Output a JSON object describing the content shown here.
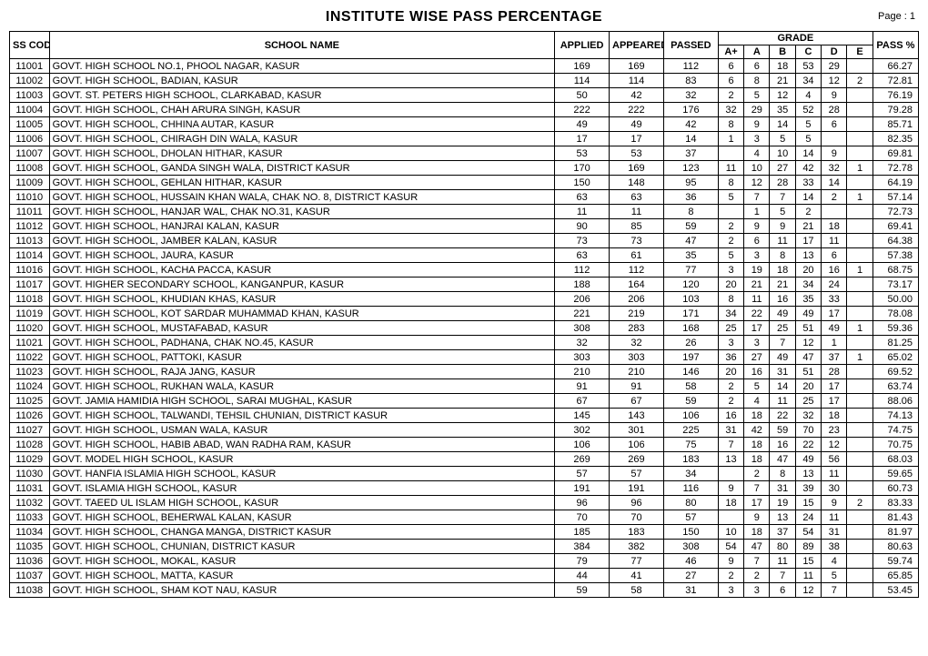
{
  "title": "INSTITUTE WISE PASS PERCENTAGE",
  "page_label": "Page : 1",
  "headers": {
    "ss_code": "SS CODE",
    "school_name": "SCHOOL NAME",
    "applied": "APPLIED",
    "appeared": "APPEARED",
    "passed": "PASSED",
    "grade": "GRADE",
    "grade_cols": [
      "A+",
      "A",
      "B",
      "C",
      "D",
      "E"
    ],
    "pass_pct": "PASS %"
  },
  "rows": [
    {
      "code": "11001",
      "name": "GOVT. HIGH SCHOOL NO.1, PHOOL NAGAR, KASUR",
      "applied": "169",
      "appeared": "169",
      "passed": "112",
      "Ap": "6",
      "A": "6",
      "B": "18",
      "C": "53",
      "D": "29",
      "E": "",
      "pass": "66.27"
    },
    {
      "code": "11002",
      "name": "GOVT. HIGH SCHOOL, BADIAN, KASUR",
      "applied": "114",
      "appeared": "114",
      "passed": "83",
      "Ap": "6",
      "A": "8",
      "B": "21",
      "C": "34",
      "D": "12",
      "E": "2",
      "pass": "72.81"
    },
    {
      "code": "11003",
      "name": "GOVT. ST. PETERS HIGH SCHOOL,  CLARKABAD, KASUR",
      "applied": "50",
      "appeared": "42",
      "passed": "32",
      "Ap": "2",
      "A": "5",
      "B": "12",
      "C": "4",
      "D": "9",
      "E": "",
      "pass": "76.19"
    },
    {
      "code": "11004",
      "name": "GOVT. HIGH SCHOOL, CHAH ARURA SINGH, KASUR",
      "applied": "222",
      "appeared": "222",
      "passed": "176",
      "Ap": "32",
      "A": "29",
      "B": "35",
      "C": "52",
      "D": "28",
      "E": "",
      "pass": "79.28"
    },
    {
      "code": "11005",
      "name": "GOVT. HIGH SCHOOL, CHHINA AUTAR, KASUR",
      "applied": "49",
      "appeared": "49",
      "passed": "42",
      "Ap": "8",
      "A": "9",
      "B": "14",
      "C": "5",
      "D": "6",
      "E": "",
      "pass": "85.71"
    },
    {
      "code": "11006",
      "name": "GOVT. HIGH SCHOOL, CHIRAGH DIN WALA, KASUR",
      "applied": "17",
      "appeared": "17",
      "passed": "14",
      "Ap": "1",
      "A": "3",
      "B": "5",
      "C": "5",
      "D": "",
      "E": "",
      "pass": "82.35"
    },
    {
      "code": "11007",
      "name": "GOVT. HIGH SCHOOL,  DHOLAN HITHAR, KASUR",
      "applied": "53",
      "appeared": "53",
      "passed": "37",
      "Ap": "",
      "A": "4",
      "B": "10",
      "C": "14",
      "D": "9",
      "E": "",
      "pass": "69.81"
    },
    {
      "code": "11008",
      "name": "GOVT. HIGH SCHOOL, GANDA SINGH WALA, DISTRICT KASUR",
      "applied": "170",
      "appeared": "169",
      "passed": "123",
      "Ap": "11",
      "A": "10",
      "B": "27",
      "C": "42",
      "D": "32",
      "E": "1",
      "pass": "72.78"
    },
    {
      "code": "11009",
      "name": "GOVT. HIGH SCHOOL, GEHLAN HITHAR, KASUR",
      "applied": "150",
      "appeared": "148",
      "passed": "95",
      "Ap": "8",
      "A": "12",
      "B": "28",
      "C": "33",
      "D": "14",
      "E": "",
      "pass": "64.19"
    },
    {
      "code": "11010",
      "name": "GOVT. HIGH SCHOOL, HUSSAIN KHAN WALA, CHAK NO. 8, DISTRICT KASUR",
      "applied": "63",
      "appeared": "63",
      "passed": "36",
      "Ap": "5",
      "A": "7",
      "B": "7",
      "C": "14",
      "D": "2",
      "E": "1",
      "pass": "57.14"
    },
    {
      "code": "11011",
      "name": "GOVT. HIGH SCHOOL, HANJAR WAL, CHAK NO.31, KASUR",
      "applied": "11",
      "appeared": "11",
      "passed": "8",
      "Ap": "",
      "A": "1",
      "B": "5",
      "C": "2",
      "D": "",
      "E": "",
      "pass": "72.73"
    },
    {
      "code": "11012",
      "name": "GOVT. HIGH SCHOOL, HANJRAI KALAN, KASUR",
      "applied": "90",
      "appeared": "85",
      "passed": "59",
      "Ap": "2",
      "A": "9",
      "B": "9",
      "C": "21",
      "D": "18",
      "E": "",
      "pass": "69.41"
    },
    {
      "code": "11013",
      "name": "GOVT. HIGH SCHOOL, JAMBER KALAN, KASUR",
      "applied": "73",
      "appeared": "73",
      "passed": "47",
      "Ap": "2",
      "A": "6",
      "B": "11",
      "C": "17",
      "D": "11",
      "E": "",
      "pass": "64.38"
    },
    {
      "code": "11014",
      "name": "GOVT. HIGH SCHOOL, JAURA, KASUR",
      "applied": "63",
      "appeared": "61",
      "passed": "35",
      "Ap": "5",
      "A": "3",
      "B": "8",
      "C": "13",
      "D": "6",
      "E": "",
      "pass": "57.38"
    },
    {
      "code": "11016",
      "name": "GOVT. HIGH SCHOOL, KACHA PACCA, KASUR",
      "applied": "112",
      "appeared": "112",
      "passed": "77",
      "Ap": "3",
      "A": "19",
      "B": "18",
      "C": "20",
      "D": "16",
      "E": "1",
      "pass": "68.75"
    },
    {
      "code": "11017",
      "name": "GOVT. HIGHER SECONDARY SCHOOL, KANGANPUR, KASUR",
      "applied": "188",
      "appeared": "164",
      "passed": "120",
      "Ap": "20",
      "A": "21",
      "B": "21",
      "C": "34",
      "D": "24",
      "E": "",
      "pass": "73.17"
    },
    {
      "code": "11018",
      "name": "GOVT. HIGH SCHOOL, KHUDIAN KHAS, KASUR",
      "applied": "206",
      "appeared": "206",
      "passed": "103",
      "Ap": "8",
      "A": "11",
      "B": "16",
      "C": "35",
      "D": "33",
      "E": "",
      "pass": "50.00"
    },
    {
      "code": "11019",
      "name": "GOVT. HIGH SCHOOL, KOT SARDAR MUHAMMAD KHAN, KASUR",
      "applied": "221",
      "appeared": "219",
      "passed": "171",
      "Ap": "34",
      "A": "22",
      "B": "49",
      "C": "49",
      "D": "17",
      "E": "",
      "pass": "78.08"
    },
    {
      "code": "11020",
      "name": "GOVT. HIGH SCHOOL, MUSTAFABAD, KASUR",
      "applied": "308",
      "appeared": "283",
      "passed": "168",
      "Ap": "25",
      "A": "17",
      "B": "25",
      "C": "51",
      "D": "49",
      "E": "1",
      "pass": "59.36"
    },
    {
      "code": "11021",
      "name": "GOVT. HIGH SCHOOL, PADHANA, CHAK NO.45, KASUR",
      "applied": "32",
      "appeared": "32",
      "passed": "26",
      "Ap": "3",
      "A": "3",
      "B": "7",
      "C": "12",
      "D": "1",
      "E": "",
      "pass": "81.25"
    },
    {
      "code": "11022",
      "name": "GOVT. HIGH SCHOOL, PATTOKI, KASUR",
      "applied": "303",
      "appeared": "303",
      "passed": "197",
      "Ap": "36",
      "A": "27",
      "B": "49",
      "C": "47",
      "D": "37",
      "E": "1",
      "pass": "65.02"
    },
    {
      "code": "11023",
      "name": "GOVT. HIGH SCHOOL, RAJA JANG, KASUR",
      "applied": "210",
      "appeared": "210",
      "passed": "146",
      "Ap": "20",
      "A": "16",
      "B": "31",
      "C": "51",
      "D": "28",
      "E": "",
      "pass": "69.52"
    },
    {
      "code": "11024",
      "name": "GOVT. HIGH SCHOOL, RUKHAN WALA, KASUR",
      "applied": "91",
      "appeared": "91",
      "passed": "58",
      "Ap": "2",
      "A": "5",
      "B": "14",
      "C": "20",
      "D": "17",
      "E": "",
      "pass": "63.74"
    },
    {
      "code": "11025",
      "name": "GOVT. JAMIA HAMIDIA HIGH SCHOOL, SARAI MUGHAL, KASUR",
      "applied": "67",
      "appeared": "67",
      "passed": "59",
      "Ap": "2",
      "A": "4",
      "B": "11",
      "C": "25",
      "D": "17",
      "E": "",
      "pass": "88.06"
    },
    {
      "code": "11026",
      "name": "GOVT. HIGH SCHOOL, TALWANDI, TEHSIL CHUNIAN, DISTRICT KASUR",
      "applied": "145",
      "appeared": "143",
      "passed": "106",
      "Ap": "16",
      "A": "18",
      "B": "22",
      "C": "32",
      "D": "18",
      "E": "",
      "pass": "74.13"
    },
    {
      "code": "11027",
      "name": "GOVT. HIGH SCHOOL, USMAN WALA, KASUR",
      "applied": "302",
      "appeared": "301",
      "passed": "225",
      "Ap": "31",
      "A": "42",
      "B": "59",
      "C": "70",
      "D": "23",
      "E": "",
      "pass": "74.75"
    },
    {
      "code": "11028",
      "name": "GOVT. HIGH SCHOOL, HABIB ABAD, WAN RADHA RAM, KASUR",
      "applied": "106",
      "appeared": "106",
      "passed": "75",
      "Ap": "7",
      "A": "18",
      "B": "16",
      "C": "22",
      "D": "12",
      "E": "",
      "pass": "70.75"
    },
    {
      "code": "11029",
      "name": "GOVT. MODEL HIGH SCHOOL, KASUR",
      "applied": "269",
      "appeared": "269",
      "passed": "183",
      "Ap": "13",
      "A": "18",
      "B": "47",
      "C": "49",
      "D": "56",
      "E": "",
      "pass": "68.03"
    },
    {
      "code": "11030",
      "name": "GOVT. HANFIA ISLAMIA HIGH SCHOOL, KASUR",
      "applied": "57",
      "appeared": "57",
      "passed": "34",
      "Ap": "",
      "A": "2",
      "B": "8",
      "C": "13",
      "D": "11",
      "E": "",
      "pass": "59.65"
    },
    {
      "code": "11031",
      "name": "GOVT. ISLAMIA HIGH SCHOOL, KASUR",
      "applied": "191",
      "appeared": "191",
      "passed": "116",
      "Ap": "9",
      "A": "7",
      "B": "31",
      "C": "39",
      "D": "30",
      "E": "",
      "pass": "60.73"
    },
    {
      "code": "11032",
      "name": "GOVT. TAEED UL ISLAM HIGH SCHOOL, KASUR",
      "applied": "96",
      "appeared": "96",
      "passed": "80",
      "Ap": "18",
      "A": "17",
      "B": "19",
      "C": "15",
      "D": "9",
      "E": "2",
      "pass": "83.33"
    },
    {
      "code": "11033",
      "name": "GOVT. HIGH SCHOOL, BEHERWAL KALAN, KASUR",
      "applied": "70",
      "appeared": "70",
      "passed": "57",
      "Ap": "",
      "A": "9",
      "B": "13",
      "C": "24",
      "D": "11",
      "E": "",
      "pass": "81.43"
    },
    {
      "code": "11034",
      "name": "GOVT. HIGH SCHOOL, CHANGA MANGA, DISTRICT KASUR",
      "applied": "185",
      "appeared": "183",
      "passed": "150",
      "Ap": "10",
      "A": "18",
      "B": "37",
      "C": "54",
      "D": "31",
      "E": "",
      "pass": "81.97"
    },
    {
      "code": "11035",
      "name": "GOVT. HIGH SCHOOL, CHUNIAN, DISTRICT KASUR",
      "applied": "384",
      "appeared": "382",
      "passed": "308",
      "Ap": "54",
      "A": "47",
      "B": "80",
      "C": "89",
      "D": "38",
      "E": "",
      "pass": "80.63"
    },
    {
      "code": "11036",
      "name": "GOVT. HIGH SCHOOL, MOKAL, KASUR",
      "applied": "79",
      "appeared": "77",
      "passed": "46",
      "Ap": "9",
      "A": "7",
      "B": "11",
      "C": "15",
      "D": "4",
      "E": "",
      "pass": "59.74"
    },
    {
      "code": "11037",
      "name": "GOVT. HIGH SCHOOL, MATTA, KASUR",
      "applied": "44",
      "appeared": "41",
      "passed": "27",
      "Ap": "2",
      "A": "2",
      "B": "7",
      "C": "11",
      "D": "5",
      "E": "",
      "pass": "65.85"
    },
    {
      "code": "11038",
      "name": "GOVT. HIGH SCHOOL, SHAM KOT NAU, KASUR",
      "applied": "59",
      "appeared": "58",
      "passed": "31",
      "Ap": "3",
      "A": "3",
      "B": "6",
      "C": "12",
      "D": "7",
      "E": "",
      "pass": "53.45"
    }
  ]
}
